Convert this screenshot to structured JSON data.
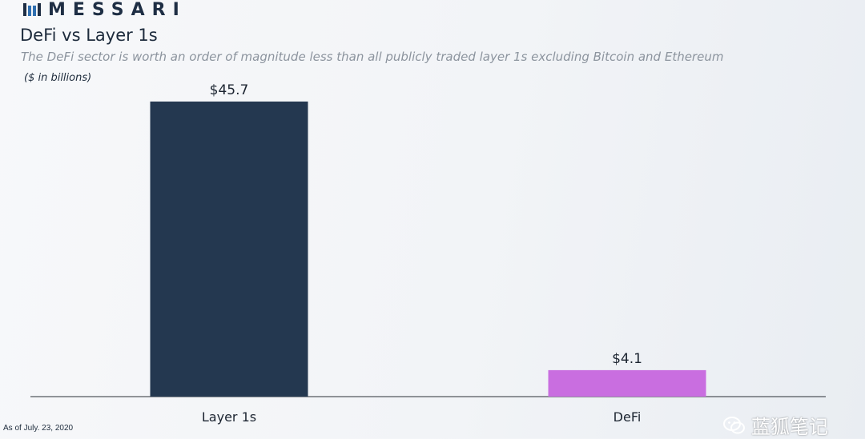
{
  "brand": {
    "name": "MESSARI",
    "logo_color": "#1e2e44"
  },
  "header": {
    "title": "DeFi vs Layer 1s",
    "subtitle": "The DeFi sector is worth an order of magnitude less than all publicly traded layer 1s excluding Bitcoin and Ethereum",
    "unit": "($ in billions)"
  },
  "footer": {
    "as_of": "As of July. 23, 2020"
  },
  "watermark": {
    "text": "蓝狐笔记",
    "icon": "wechat-icon"
  },
  "chart_data": {
    "type": "bar",
    "categories": [
      "Layer 1s",
      "DeFi"
    ],
    "values": [
      45.7,
      4.1
    ],
    "data_labels": [
      "$45.7",
      "$4.1"
    ],
    "colors": [
      "#243850",
      "#c96ee0"
    ],
    "ylim": [
      0,
      45.7
    ],
    "grid": false
  }
}
